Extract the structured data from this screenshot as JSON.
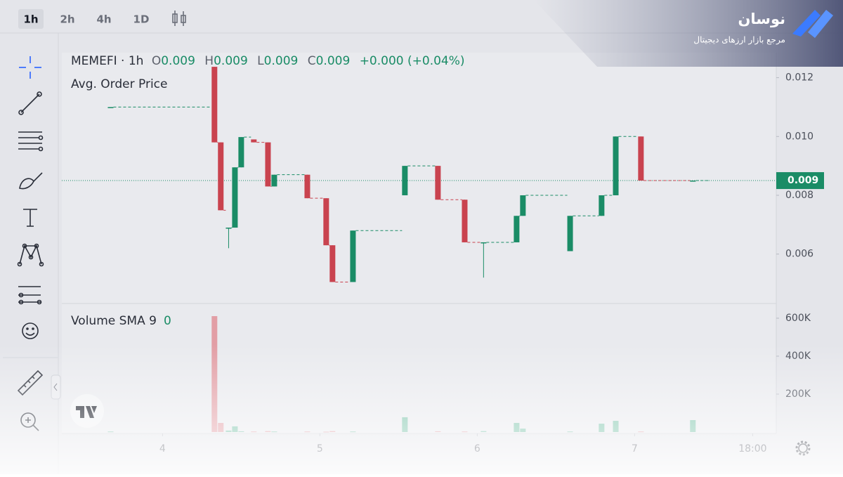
{
  "toolbar": {
    "timeframes": [
      "1h",
      "2h",
      "4h",
      "1D"
    ]
  },
  "brand": {
    "name": "نوسان",
    "tagline": "مرجع بازار ارزهای دیجیتال"
  },
  "chart_data": {
    "type": "candlestick",
    "symbol": "MEMEFI · 1h",
    "ohlc": [
      {
        "label": "O",
        "value": "0.009"
      },
      {
        "label": "H",
        "value": "0.009"
      },
      {
        "label": "L",
        "value": "0.009"
      },
      {
        "label": "C",
        "value": "0.009"
      }
    ],
    "change": "+0.000 (+0.04%)",
    "indicator": "Avg. Order Price",
    "volume_title": "Volume SMA 9",
    "volume_value": "0",
    "x": [
      3.67,
      4.33,
      4.37,
      4.42,
      4.46,
      4.5,
      4.58,
      4.67,
      4.71,
      4.92,
      5.04,
      5.08,
      5.21,
      5.54,
      5.75,
      5.92,
      6.04,
      6.25,
      6.29,
      6.59,
      6.79,
      6.88,
      7.04,
      7.37
    ],
    "open": [
      0.011,
      0.01237,
      0.0098,
      0.0069,
      0.0069,
      0.00895,
      0.0099,
      0.0098,
      0.0083,
      0.0087,
      0.0079,
      0.0063,
      0.00505,
      0.008,
      0.009,
      0.00785,
      0.0064,
      0.0064,
      0.0073,
      0.0061,
      0.0073,
      0.008,
      0.01,
      0.0085
    ],
    "high": [
      0.011,
      0.01237,
      0.0098,
      0.0069,
      0.00895,
      0.00998,
      0.0099,
      0.0098,
      0.0087,
      0.0087,
      0.0079,
      0.0063,
      0.0068,
      0.009,
      0.009,
      0.00785,
      0.0064,
      0.0073,
      0.008,
      0.0073,
      0.008,
      0.01,
      0.01,
      0.0085
    ],
    "low": [
      0.011,
      0.0098,
      0.00749,
      0.0062,
      0.0069,
      0.00895,
      0.0098,
      0.0083,
      0.0083,
      0.0079,
      0.0063,
      0.00505,
      0.00505,
      0.008,
      0.00785,
      0.0064,
      0.0052,
      0.0064,
      0.0073,
      0.0061,
      0.0073,
      0.008,
      0.0085,
      0.0085
    ],
    "close": [
      0.011,
      0.0098,
      0.00749,
      0.0069,
      0.00895,
      0.00998,
      0.0098,
      0.0083,
      0.0087,
      0.0079,
      0.0063,
      0.00505,
      0.0068,
      0.009,
      0.00785,
      0.0064,
      0.0064,
      0.0073,
      0.008,
      0.0073,
      0.008,
      0.01,
      0.0085,
      0.0085
    ],
    "volume": [
      3000,
      611000,
      48000,
      8000,
      30000,
      4000,
      3000,
      5000,
      3000,
      3000,
      2000,
      5000,
      3000,
      78000,
      4000,
      3000,
      5000,
      48000,
      18000,
      3000,
      44000,
      59000,
      3000,
      63000
    ],
    "up_color": "#1a8c66",
    "down_color": "#c9434f",
    "volume_up_color": "#7cc3aa",
    "volume_down_color": "#e29ea5",
    "xlim": [
      3.36,
      7.9
    ],
    "xticks": [
      4,
      5,
      6,
      7,
      {
        "value": 7.75,
        "label": "18:00"
      }
    ],
    "ylim": [
      0.00432,
      0.01285
    ],
    "yticks": [
      0.006,
      0.008,
      {
        "value": 0.01,
        "label": "0.010"
      },
      0.012
    ],
    "volume_ylim": [
      0,
      648000
    ],
    "volume_yticks": [
      {
        "value": 200000,
        "label": "200K"
      },
      {
        "value": 400000,
        "label": "400K"
      },
      {
        "value": 600000,
        "label": "600K"
      }
    ],
    "last_price": {
      "value": 0.0085,
      "label": "0.009"
    }
  }
}
